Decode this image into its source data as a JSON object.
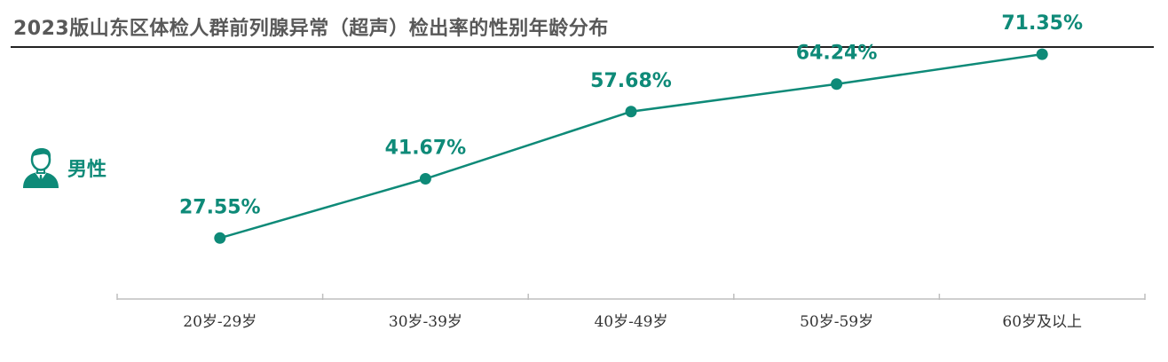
{
  "title": "2023版山东区体检人群前列腺异常（超声）检出率的性别年龄分布",
  "legend": {
    "label": "男性",
    "icon": "male-avatar-icon"
  },
  "colors": {
    "series": "#0e8a78",
    "axis": "#bfbfbf",
    "title": "#595959"
  },
  "chart_data": {
    "type": "line",
    "title": "2023版山东区体检人群前列腺异常（超声）检出率的性别年龄分布",
    "categories": [
      "20岁-29岁",
      "30岁-39岁",
      "40岁-49岁",
      "50岁-59岁",
      "60岁及以上"
    ],
    "series": [
      {
        "name": "男性",
        "values": [
          27.55,
          41.67,
          57.68,
          64.24,
          71.35
        ],
        "labels": [
          "27.55%",
          "41.67%",
          "57.68%",
          "64.24%",
          "71.35%"
        ]
      }
    ],
    "ylim": [
      0,
      100
    ],
    "grid": false,
    "legend_position": "left"
  }
}
